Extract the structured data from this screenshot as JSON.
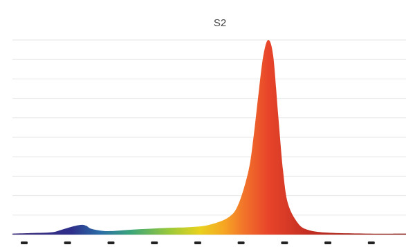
{
  "chart_data": {
    "type": "area",
    "title": "S2",
    "xlabel": "",
    "ylabel": "",
    "grid": true,
    "legend": "none",
    "x_range": [
      380,
      780
    ],
    "ylim": [
      0,
      1
    ],
    "gridline_count": 10,
    "tick_count": 9,
    "series": [
      {
        "x": [
          380,
          400,
          420,
          430,
          440,
          450,
          455,
          460,
          470,
          480,
          500,
          520,
          540,
          560,
          580,
          600,
          610,
          620,
          625,
          630,
          635,
          640,
          645,
          650,
          655,
          660,
          670,
          680,
          700,
          740,
          780
        ],
        "values": [
          0.005,
          0.008,
          0.012,
          0.025,
          0.04,
          0.05,
          0.045,
          0.03,
          0.02,
          0.018,
          0.025,
          0.03,
          0.035,
          0.038,
          0.05,
          0.09,
          0.16,
          0.33,
          0.5,
          0.72,
          0.92,
          1.0,
          0.92,
          0.62,
          0.33,
          0.16,
          0.06,
          0.025,
          0.01,
          0.005,
          0.005
        ]
      }
    ],
    "gradient_stops": [
      {
        "x": 380,
        "color": "#3a2a7a"
      },
      {
        "x": 440,
        "color": "#2e2f8a"
      },
      {
        "x": 470,
        "color": "#2b6fa8"
      },
      {
        "x": 500,
        "color": "#3aa57a"
      },
      {
        "x": 540,
        "color": "#9cc93a"
      },
      {
        "x": 570,
        "color": "#e8d21e"
      },
      {
        "x": 595,
        "color": "#f6a623"
      },
      {
        "x": 615,
        "color": "#f2742a"
      },
      {
        "x": 640,
        "color": "#e8452a"
      },
      {
        "x": 680,
        "color": "#c42e22"
      },
      {
        "x": 780,
        "color": "#8a1c18"
      }
    ]
  }
}
